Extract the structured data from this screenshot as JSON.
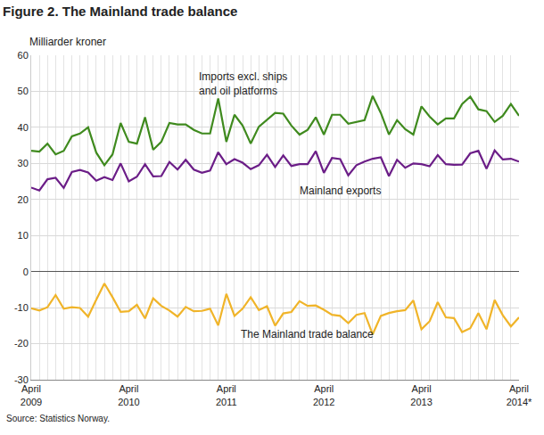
{
  "chart_data": {
    "type": "line",
    "title": "Figure 2. The Mainland trade balance",
    "y_label": "Milliarder kroner",
    "source": "Source: Statistics Norway.",
    "categories": [
      "April 2009",
      null,
      null,
      null,
      null,
      null,
      null,
      null,
      null,
      null,
      null,
      null,
      "April 2010",
      null,
      null,
      null,
      null,
      null,
      null,
      null,
      null,
      null,
      null,
      null,
      "April 2011",
      null,
      null,
      null,
      null,
      null,
      null,
      null,
      null,
      null,
      null,
      null,
      "April 2012",
      null,
      null,
      null,
      null,
      null,
      null,
      null,
      null,
      null,
      null,
      null,
      "April 2013",
      null,
      null,
      null,
      null,
      null,
      null,
      null,
      null,
      null,
      null,
      null,
      "April 2014*"
    ],
    "series": [
      {
        "name": "Imports excl. ships\nand oil platforms",
        "color": "#3f8a1e",
        "values": [
          33.5,
          33.3,
          35.5,
          32.5,
          33.5,
          37.5,
          38.3,
          40,
          33,
          29.5,
          32.5,
          41.2,
          36,
          35.5,
          42.8,
          33.8,
          36,
          41.2,
          40.8,
          40.8,
          39.3,
          38.3,
          38.3,
          48,
          36,
          43.5,
          40.5,
          35.5,
          40.2,
          42,
          44,
          43.8,
          40.5,
          38,
          39.3,
          42.8,
          38,
          43.5,
          43.5,
          41,
          41.5,
          42,
          48.7,
          44,
          38,
          42,
          39.5,
          38,
          45.8,
          43,
          40.8,
          42.5,
          42.5,
          46.5,
          48.5,
          45,
          44.5,
          41.5,
          43.2,
          46.5,
          43.2
        ]
      },
      {
        "name": "Mainland exports",
        "color": "#6b1d87",
        "values": [
          23.3,
          22.5,
          25.6,
          26,
          23.2,
          27.6,
          28.2,
          27.5,
          25.2,
          26.2,
          25.4,
          30,
          25,
          26.3,
          29.8,
          26.4,
          26.5,
          30.4,
          28.3,
          31,
          28.3,
          27.4,
          28,
          33.1,
          29.8,
          31.2,
          30.2,
          28.4,
          29.5,
          32.4,
          29,
          32.2,
          29.3,
          29.8,
          29.8,
          33.4,
          27.4,
          31.5,
          31.2,
          26.7,
          29.5,
          30.5,
          31.3,
          31.7,
          26.5,
          31,
          28.8,
          30,
          29.8,
          29.2,
          32.3,
          29.8,
          29.6,
          29.7,
          32.8,
          33.5,
          28.5,
          33.6,
          31.1,
          31.3,
          30.5
        ]
      },
      {
        "name": "The Mainland trade balance",
        "color": "#f0b429",
        "values": [
          -10.2,
          -10.8,
          -9.9,
          -6.5,
          -10.3,
          -9.9,
          -10.1,
          -12.5,
          -7.8,
          -3.3,
          -7.1,
          -11.2,
          -11,
          -9.2,
          -13,
          -7.4,
          -9.5,
          -10.8,
          -12.5,
          -9.8,
          -11,
          -10.9,
          -10.3,
          -14.9,
          -6.2,
          -12.3,
          -10.3,
          -7.1,
          -10.7,
          -9.6,
          -15,
          -11.6,
          -11.2,
          -8.2,
          -9.5,
          -9.4,
          -10.6,
          -12,
          -12.3,
          -14.3,
          -12,
          -11.5,
          -17.4,
          -12.3,
          -11.5,
          -11,
          -10.7,
          -8,
          -16,
          -13.8,
          -8.5,
          -12.7,
          -12.9,
          -16.8,
          -15.7,
          -11.5,
          -16,
          -7.9,
          -12.1,
          -15.2,
          -12.7
        ]
      }
    ],
    "ylim": [
      -30,
      60
    ],
    "yticks": [
      -30,
      -20,
      -10,
      0,
      10,
      20,
      30,
      40,
      50,
      60
    ],
    "grid": true
  }
}
